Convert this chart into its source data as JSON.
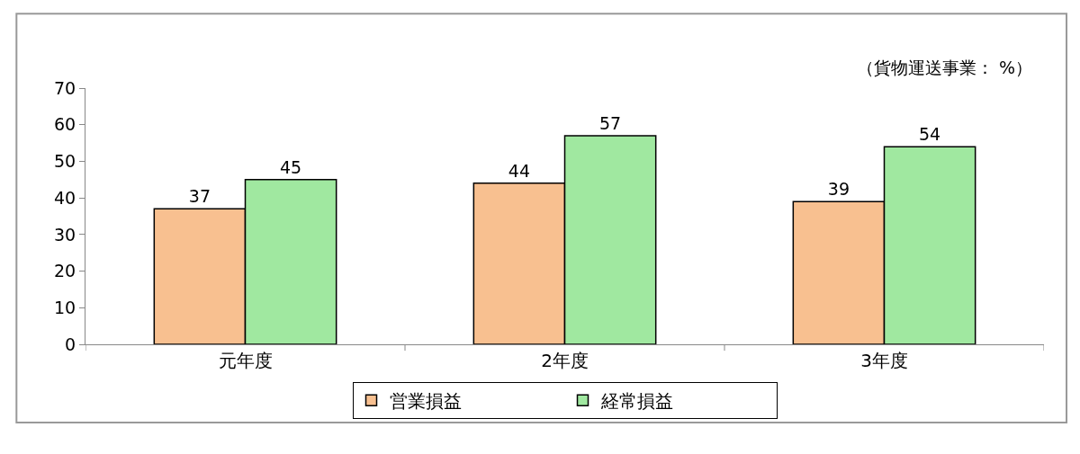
{
  "chart_data": {
    "type": "bar",
    "categories": [
      "元年度",
      "2年度",
      "3年度"
    ],
    "series": [
      {
        "name": "営業損益",
        "color": "#f8c090",
        "values": [
          37,
          44,
          39
        ]
      },
      {
        "name": "経常損益",
        "color": "#a0e8a0",
        "values": [
          45,
          57,
          54
        ]
      }
    ],
    "ylim": [
      0,
      70
    ],
    "yticks": [
      0,
      10,
      20,
      30,
      40,
      50,
      60,
      70
    ],
    "data_labels": true,
    "legend": "bottom",
    "annotations": [
      "（貨物運送事業： %）"
    ]
  }
}
